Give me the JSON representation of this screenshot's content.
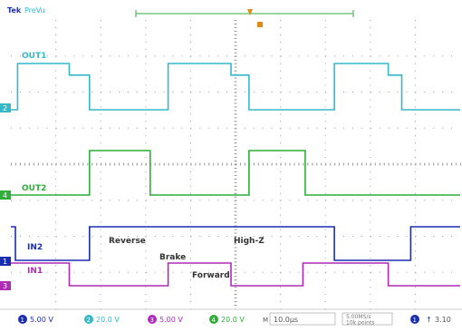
{
  "header": {
    "brand": "Tek",
    "mode": "PreVu"
  },
  "channel_labels": {
    "out1": "OUT1",
    "out2": "OUT2",
    "in2": "IN2",
    "in1": "IN1"
  },
  "annotations": {
    "reverse": "Reverse",
    "brake": "Brake",
    "high_z": "High-Z",
    "forward": "Forward"
  },
  "bottom_bar": {
    "ch1": {
      "num": "1",
      "scale": "5.00 V"
    },
    "ch2": {
      "num": "2",
      "scale": "20.0 V"
    },
    "ch3": {
      "num": "3",
      "scale": "5.00 V"
    },
    "ch4": {
      "num": "4",
      "scale": "20.0 V"
    },
    "timebase": "10.0µs",
    "sample_rate": "5.00MS/s",
    "record_length": "10k points",
    "trigger_source": "1",
    "trigger_level": "3.10",
    "ch4_extra": "M",
    "acq": "↑"
  },
  "colors": {
    "out1": "#35b8c9",
    "out2": "#2fae3a",
    "in2": "#1a2fb0",
    "in1": "#b02ab8",
    "trigger": "#e08a1a",
    "grid": "#9a9a9a"
  },
  "chart_data": {
    "type": "line",
    "x_unit": "div",
    "xlim": [
      0,
      10
    ],
    "series": [
      {
        "name": "OUT1",
        "x": [
          0,
          0.15,
          0.15,
          1.3,
          1.3,
          1.75,
          1.75,
          3.5,
          3.5,
          4.9,
          4.9,
          5.3,
          5.3,
          7.2,
          7.2,
          8.4,
          8.4,
          8.7,
          8.7,
          10
        ],
        "y": [
          0,
          0,
          1,
          1,
          0.75,
          0.75,
          0,
          0,
          1,
          1,
          0.75,
          0.75,
          0,
          0,
          1,
          1,
          0.75,
          0.75,
          0,
          0
        ]
      },
      {
        "name": "OUT2",
        "x": [
          0,
          1.75,
          1.75,
          3.1,
          3.1,
          5.3,
          5.3,
          6.55,
          6.55,
          10
        ],
        "y": [
          0,
          0,
          1,
          1,
          0,
          0,
          1,
          1,
          0,
          0
        ]
      },
      {
        "name": "IN2",
        "x": [
          0,
          0.1,
          0.1,
          1.75,
          1.75,
          5.3,
          5.3,
          7.2,
          7.2,
          8.9,
          8.9,
          10
        ],
        "y": [
          1,
          1,
          0,
          0,
          1,
          1,
          1,
          1,
          0,
          0,
          1,
          1
        ]
      },
      {
        "name": "IN1",
        "x": [
          0,
          1.3,
          1.3,
          3.5,
          3.5,
          4.9,
          4.9,
          6.5,
          6.5,
          8.4,
          8.4,
          10
        ],
        "y": [
          1,
          1,
          0,
          0,
          1,
          1,
          0,
          0,
          1,
          1,
          0,
          0
        ]
      }
    ]
  }
}
